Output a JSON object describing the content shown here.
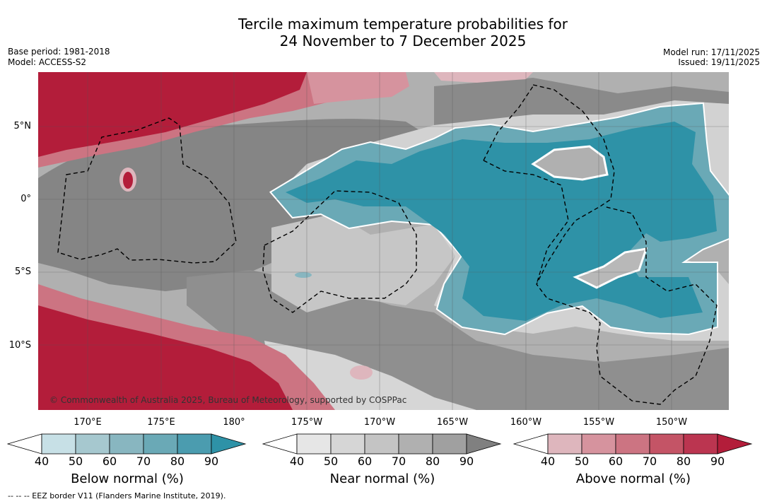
{
  "header": {
    "title_line1": "Tercile maximum temperature probabilities for",
    "title_line2": "24 November to 7 December 2025",
    "base_period": "Base period: 1981-2018",
    "model": "Model: ACCESS-S2",
    "model_run": "Model run: 17/11/2025",
    "issued": "Issued: 19/11/2025"
  },
  "map": {
    "latitude_labels": [
      "5°N",
      "0°",
      "5°S",
      "10°S"
    ],
    "longitude_labels": [
      "170°E",
      "175°E",
      "180°",
      "175°W",
      "170°W",
      "165°W",
      "160°W",
      "155°W",
      "150°W"
    ],
    "credit": "© Commonwealth of Australia 2025, Bureau of Meteorology, supported by COSPPac",
    "colors": {
      "above_deep": "#b31d3a",
      "below_deep": "#2e92a7",
      "near_dark": "#808080",
      "near_mid": "#a9a9a9",
      "near_light": "#c8c8c8",
      "near_pale": "#dcdcdc"
    }
  },
  "colorbars": [
    {
      "name": "below",
      "title": "Below normal (%)",
      "ticks": [
        "40",
        "50",
        "60",
        "70",
        "80",
        "90"
      ],
      "colors": [
        "#c7e0e6",
        "#a6c8cf",
        "#88b6c0",
        "#6aa9b6",
        "#4b9caf",
        "#2e92a7"
      ]
    },
    {
      "name": "near",
      "title": "Near normal (%)",
      "ticks": [
        "40",
        "50",
        "60",
        "70",
        "80",
        "90"
      ],
      "colors": [
        "#e6e6e6",
        "#d6d6d6",
        "#c4c4c4",
        "#b0b0b0",
        "#a0a0a0",
        "#808080"
      ]
    },
    {
      "name": "above",
      "title": "Above normal (%)",
      "ticks": [
        "40",
        "50",
        "60",
        "70",
        "80",
        "90"
      ],
      "colors": [
        "#deb6bd",
        "#d6939e",
        "#cc7482",
        "#c45466",
        "#bb3550",
        "#b31d3a"
      ]
    }
  ],
  "footer": {
    "legend_line": "--  --  -- EEZ border V11 (Flanders Marine Institute, 2019)."
  }
}
